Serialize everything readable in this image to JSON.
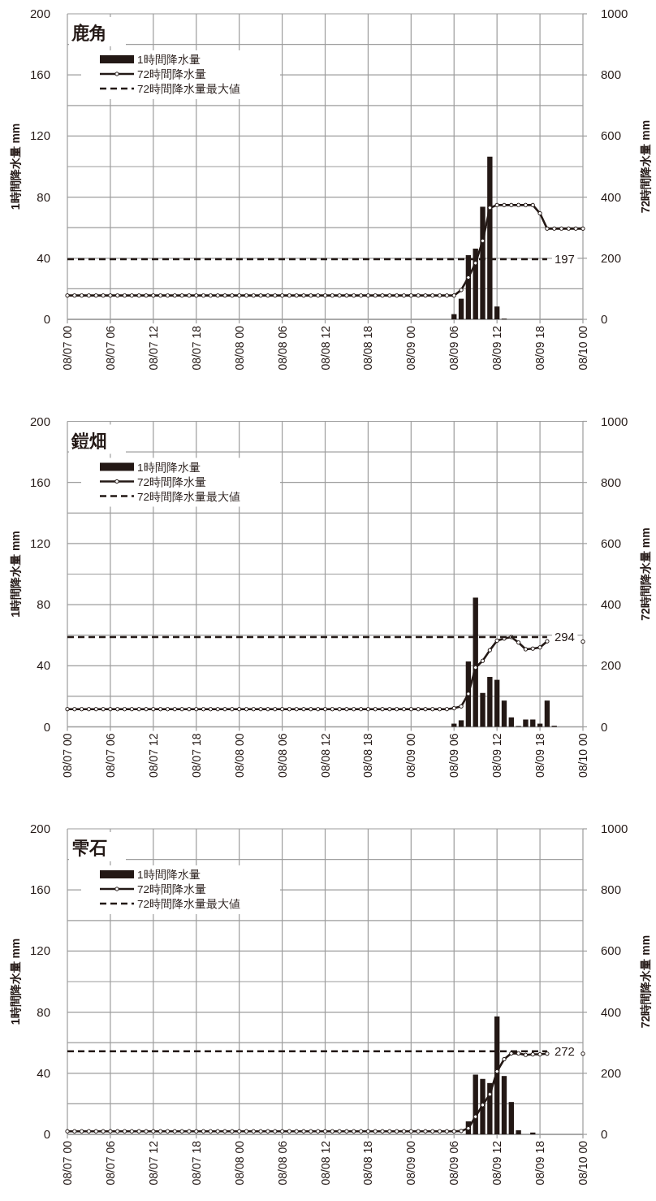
{
  "chart_data": [
    {
      "type": "bar",
      "title": "鹿角",
      "ylabel": "1時間降水量 mm",
      "y2label": "72時間降水量 mm",
      "categories": [
        "08/07 00",
        null,
        null,
        null,
        null,
        null,
        "08/07 06",
        null,
        null,
        null,
        null,
        null,
        "08/07 12",
        null,
        null,
        null,
        null,
        null,
        "08/07 18",
        null,
        null,
        null,
        null,
        null,
        "08/08 00",
        null,
        null,
        null,
        null,
        null,
        "08/08 06",
        null,
        null,
        null,
        null,
        null,
        "08/08 12",
        null,
        null,
        null,
        null,
        null,
        "08/08 18",
        null,
        null,
        null,
        null,
        null,
        "08/09 00",
        null,
        null,
        null,
        null,
        null,
        "08/09 06",
        null,
        null,
        null,
        null,
        null,
        "08/09 12",
        null,
        null,
        null,
        null,
        null,
        "08/09 18",
        null,
        null,
        null,
        null,
        null,
        "08/10 00"
      ],
      "series": [
        {
          "name": "1時間降水量",
          "type": "bar",
          "color": "#231815",
          "values": [
            0,
            0,
            0,
            0,
            0,
            0,
            0,
            0,
            0,
            0,
            0,
            0,
            0,
            0,
            0,
            0,
            0,
            0,
            0,
            0,
            0,
            0,
            0,
            0,
            0,
            0,
            0,
            0,
            0,
            0,
            0,
            0,
            0,
            0,
            0,
            0,
            0,
            0,
            0,
            0,
            0,
            0,
            0,
            0,
            0,
            0,
            0,
            0,
            0,
            0,
            0,
            0,
            0,
            0,
            3.4,
            13.5,
            42,
            46.3,
            73.7,
            106.5,
            8.4,
            0.5,
            0,
            0,
            0,
            0,
            0,
            0,
            0,
            0,
            0,
            0,
            0
          ]
        },
        {
          "name": "72時間降水量",
          "type": "line",
          "axis": "y2",
          "color": "#231815",
          "marker": "circle",
          "line_style": "solid",
          "values": [
            78,
            78,
            78,
            78,
            78,
            78,
            78,
            78,
            78,
            78,
            78,
            78,
            78,
            78,
            78,
            78,
            78,
            78,
            78,
            78,
            78,
            78,
            78,
            78,
            78,
            78,
            78,
            78,
            78,
            78,
            78,
            78,
            78,
            78,
            78,
            78,
            78,
            78,
            78,
            78,
            78,
            78,
            78,
            78,
            78,
            78,
            78,
            78,
            78,
            78,
            78,
            78,
            78,
            78,
            78,
            96,
            137,
            184,
            257,
            365,
            374,
            374,
            374,
            374,
            374,
            374,
            347,
            297,
            297,
            297,
            297,
            297,
            297
          ]
        },
        {
          "name": "72時間降水量最大値",
          "type": "line",
          "axis": "y2",
          "color": "#231815",
          "marker": "none",
          "line_style": "dashed",
          "values": [
            197,
            197,
            197,
            197,
            197,
            197,
            197,
            197,
            197,
            197,
            197,
            197,
            197,
            197,
            197,
            197,
            197,
            197,
            197,
            197,
            197,
            197,
            197,
            197,
            197,
            197,
            197,
            197,
            197,
            197,
            197,
            197,
            197,
            197,
            197,
            197,
            197,
            197,
            197,
            197,
            197,
            197,
            197,
            197,
            197,
            197,
            197,
            197,
            197,
            197,
            197,
            197,
            197,
            197,
            197,
            197,
            197,
            197,
            197,
            197,
            197,
            197,
            197,
            197,
            197,
            197,
            197,
            197,
            null,
            null,
            null,
            null,
            null
          ],
          "value_labels": [
            null,
            null,
            null,
            null,
            null,
            null,
            null,
            null,
            null,
            null,
            null,
            null,
            null,
            null,
            null,
            null,
            null,
            null,
            null,
            null,
            null,
            null,
            null,
            null,
            null,
            null,
            null,
            null,
            null,
            null,
            null,
            null,
            null,
            null,
            null,
            null,
            null,
            null,
            null,
            null,
            null,
            null,
            null,
            null,
            null,
            null,
            null,
            null,
            null,
            null,
            null,
            null,
            null,
            null,
            null,
            null,
            null,
            null,
            null,
            null,
            null,
            null,
            null,
            null,
            null,
            null,
            null,
            "197",
            null,
            null,
            null,
            null,
            null
          ]
        }
      ],
      "ylim": [
        0,
        200
      ],
      "yticks": [
        0,
        {
          "value": 20,
          "label": null
        },
        40,
        {
          "value": 60,
          "label": null
        },
        80,
        {
          "value": 100,
          "label": null
        },
        120,
        {
          "value": 140,
          "label": null
        },
        160,
        {
          "value": 180,
          "label": null
        },
        200
      ],
      "y2lim": [
        0,
        1000
      ],
      "y2ticks": [
        0,
        200,
        400,
        600,
        800,
        1000
      ],
      "grid": true,
      "legend": "top left"
    },
    {
      "type": "bar",
      "title": "鎧畑",
      "ylabel": "1時間降水量 mm",
      "y2label": "72時間降水量 mm",
      "categories": [
        "08/07 00",
        null,
        null,
        null,
        null,
        null,
        "08/07 06",
        null,
        null,
        null,
        null,
        null,
        "08/07 12",
        null,
        null,
        null,
        null,
        null,
        "08/07 18",
        null,
        null,
        null,
        null,
        null,
        "08/08 00",
        null,
        null,
        null,
        null,
        null,
        "08/08 06",
        null,
        null,
        null,
        null,
        null,
        "08/08 12",
        null,
        null,
        null,
        null,
        null,
        "08/08 18",
        null,
        null,
        null,
        null,
        null,
        "08/09 00",
        null,
        null,
        null,
        null,
        null,
        "08/09 06",
        null,
        null,
        null,
        null,
        null,
        "08/09 12",
        null,
        null,
        null,
        null,
        null,
        "08/09 18",
        null,
        null,
        null,
        null,
        null,
        "08/10 00"
      ],
      "series": [
        {
          "name": "1時間降水量",
          "type": "bar",
          "color": "#231815",
          "values": [
            0,
            0,
            0,
            0,
            0,
            0,
            0,
            0,
            0,
            0,
            0,
            0,
            0,
            0,
            0,
            0,
            0,
            0,
            0,
            0,
            0,
            0,
            0,
            0,
            0,
            0,
            0,
            0,
            0,
            0,
            0,
            0,
            0,
            0,
            0,
            0,
            0,
            0,
            0,
            0,
            0,
            0,
            0,
            0,
            0,
            0,
            0,
            0,
            0,
            0,
            0,
            0,
            0,
            0,
            2.1,
            4.3,
            42.8,
            84.6,
            22.2,
            32.7,
            30.8,
            17.2,
            6.2,
            0.5,
            4.8,
            4.8,
            2.1,
            17.2,
            0.7,
            0,
            0,
            0,
            0
          ]
        },
        {
          "name": "72時間降水量",
          "type": "line",
          "axis": "y2",
          "color": "#231815",
          "marker": "circle",
          "line_style": "solid",
          "values": [
            58,
            58,
            58,
            58,
            58,
            58,
            58,
            58,
            58,
            58,
            58,
            58,
            58,
            58,
            58,
            58,
            58,
            58,
            58,
            58,
            58,
            58,
            58,
            58,
            58,
            58,
            58,
            58,
            58,
            58,
            58,
            58,
            58,
            58,
            58,
            58,
            58,
            58,
            58,
            58,
            58,
            58,
            58,
            58,
            58,
            58,
            58,
            58,
            58,
            58,
            58,
            58,
            58,
            58,
            61,
            67,
            108,
            194,
            216,
            251,
            282,
            289,
            294,
            276,
            254,
            256,
            260,
            280,
            null,
            null,
            null,
            null,
            279
          ]
        },
        {
          "name": "72時間降水量最大値",
          "type": "line",
          "axis": "y2",
          "color": "#231815",
          "marker": "none",
          "line_style": "dashed",
          "values": [
            294,
            294,
            294,
            294,
            294,
            294,
            294,
            294,
            294,
            294,
            294,
            294,
            294,
            294,
            294,
            294,
            294,
            294,
            294,
            294,
            294,
            294,
            294,
            294,
            294,
            294,
            294,
            294,
            294,
            294,
            294,
            294,
            294,
            294,
            294,
            294,
            294,
            294,
            294,
            294,
            294,
            294,
            294,
            294,
            294,
            294,
            294,
            294,
            294,
            294,
            294,
            294,
            294,
            294,
            294,
            294,
            294,
            294,
            294,
            294,
            294,
            294,
            294,
            294,
            294,
            294,
            294,
            294,
            null,
            null,
            null,
            null,
            null
          ],
          "value_labels": [
            null,
            null,
            null,
            null,
            null,
            null,
            null,
            null,
            null,
            null,
            null,
            null,
            null,
            null,
            null,
            null,
            null,
            null,
            null,
            null,
            null,
            null,
            null,
            null,
            null,
            null,
            null,
            null,
            null,
            null,
            null,
            null,
            null,
            null,
            null,
            null,
            null,
            null,
            null,
            null,
            null,
            null,
            null,
            null,
            null,
            null,
            null,
            null,
            null,
            null,
            null,
            null,
            null,
            null,
            null,
            null,
            null,
            null,
            null,
            null,
            null,
            null,
            null,
            null,
            null,
            null,
            null,
            "294",
            null,
            null,
            null,
            null,
            null
          ]
        }
      ],
      "ylim": [
        0,
        200
      ],
      "yticks": [
        0,
        {
          "value": 20,
          "label": null
        },
        40,
        {
          "value": 60,
          "label": null
        },
        80,
        {
          "value": 100,
          "label": null
        },
        120,
        {
          "value": 140,
          "label": null
        },
        160,
        {
          "value": 180,
          "label": null
        },
        200
      ],
      "y2lim": [
        0,
        1000
      ],
      "y2ticks": [
        0,
        200,
        400,
        600,
        800,
        1000
      ],
      "grid": true,
      "legend": "top left"
    },
    {
      "type": "bar",
      "title": "雫石",
      "ylabel": "1時間降水量 mm",
      "y2label": "72時間降水量 mm",
      "categories": [
        "08/07 00",
        null,
        null,
        null,
        null,
        null,
        "08/07 06",
        null,
        null,
        null,
        null,
        null,
        "08/07 12",
        null,
        null,
        null,
        null,
        null,
        "08/07 18",
        null,
        null,
        null,
        null,
        null,
        "08/08 00",
        null,
        null,
        null,
        null,
        null,
        "08/08 06",
        null,
        null,
        null,
        null,
        null,
        "08/08 12",
        null,
        null,
        null,
        null,
        null,
        "08/08 18",
        null,
        null,
        null,
        null,
        null,
        "08/09 00",
        null,
        null,
        null,
        null,
        null,
        "08/09 06",
        null,
        null,
        null,
        null,
        null,
        "08/09 12",
        null,
        null,
        null,
        null,
        null,
        "08/09 18",
        null,
        null,
        null,
        null,
        null,
        "08/10 00"
      ],
      "series": [
        {
          "name": "1時間降水量",
          "type": "bar",
          "color": "#231815",
          "values": [
            0,
            0,
            0,
            0,
            0,
            0,
            0,
            0,
            0,
            0,
            0,
            0,
            0,
            0,
            0,
            0,
            0,
            0,
            0,
            0,
            0,
            0,
            0,
            0,
            0,
            0,
            0,
            0,
            0,
            0,
            0,
            0,
            0,
            0,
            0,
            0,
            0,
            0,
            0,
            0,
            0,
            0,
            0,
            0,
            0,
            0,
            0,
            0,
            0,
            0,
            0,
            0,
            0,
            0,
            0,
            0,
            8.5,
            39.1,
            36.3,
            33.6,
            77.2,
            38.2,
            21.2,
            2.7,
            0,
            1.2,
            null,
            null,
            null,
            0,
            0,
            0,
            0
          ]
        },
        {
          "name": "72時間降水量",
          "type": "line",
          "axis": "y2",
          "color": "#231815",
          "marker": "circle",
          "line_style": "solid",
          "values": [
            10,
            10,
            10,
            10,
            10,
            10,
            10,
            10,
            10,
            10,
            10,
            10,
            10,
            10,
            10,
            10,
            10,
            10,
            10,
            10,
            10,
            10,
            10,
            10,
            10,
            10,
            10,
            10,
            10,
            10,
            10,
            10,
            10,
            10,
            10,
            10,
            10,
            10,
            10,
            10,
            10,
            10,
            10,
            10,
            10,
            10,
            10,
            10,
            10,
            10,
            10,
            10,
            10,
            10,
            10,
            11,
            20,
            58,
            96,
            131,
            206,
            246,
            265,
            265,
            260,
            262,
            262,
            264,
            null,
            null,
            null,
            null,
            264
          ]
        },
        {
          "name": "72時間降水量最大値",
          "type": "line",
          "axis": "y2",
          "color": "#231815",
          "marker": "none",
          "line_style": "dashed",
          "values": [
            272,
            272,
            272,
            272,
            272,
            272,
            272,
            272,
            272,
            272,
            272,
            272,
            272,
            272,
            272,
            272,
            272,
            272,
            272,
            272,
            272,
            272,
            272,
            272,
            272,
            272,
            272,
            272,
            272,
            272,
            272,
            272,
            272,
            272,
            272,
            272,
            272,
            272,
            272,
            272,
            272,
            272,
            272,
            272,
            272,
            272,
            272,
            272,
            272,
            272,
            272,
            272,
            272,
            272,
            272,
            272,
            272,
            272,
            272,
            272,
            272,
            272,
            272,
            272,
            272,
            272,
            272,
            272,
            null,
            null,
            null,
            null,
            null
          ],
          "value_labels": [
            null,
            null,
            null,
            null,
            null,
            null,
            null,
            null,
            null,
            null,
            null,
            null,
            null,
            null,
            null,
            null,
            null,
            null,
            null,
            null,
            null,
            null,
            null,
            null,
            null,
            null,
            null,
            null,
            null,
            null,
            null,
            null,
            null,
            null,
            null,
            null,
            null,
            null,
            null,
            null,
            null,
            null,
            null,
            null,
            null,
            null,
            null,
            null,
            null,
            null,
            null,
            null,
            null,
            null,
            null,
            null,
            null,
            null,
            null,
            null,
            null,
            null,
            null,
            null,
            null,
            null,
            null,
            "272",
            null,
            null,
            null,
            null,
            null
          ]
        }
      ],
      "ylim": [
        0,
        200
      ],
      "yticks": [
        0,
        {
          "value": 20,
          "label": null
        },
        40,
        {
          "value": 60,
          "label": null
        },
        80,
        {
          "value": 100,
          "label": null
        },
        120,
        {
          "value": 140,
          "label": null
        },
        160,
        {
          "value": 180,
          "label": null
        },
        200
      ],
      "y2lim": [
        0,
        1000
      ],
      "y2ticks": [
        0,
        200,
        400,
        600,
        800,
        1000
      ],
      "grid": true,
      "legend": "top left"
    }
  ]
}
